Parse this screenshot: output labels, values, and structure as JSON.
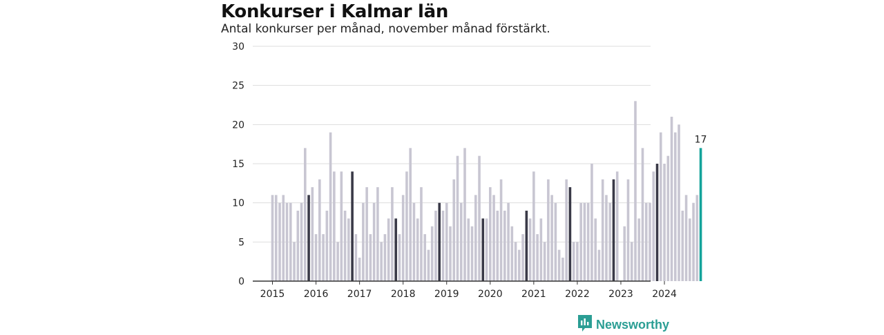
{
  "chart_data": {
    "type": "bar",
    "title": "Konkurser i Kalmar län",
    "subtitle": "Antal konkurser per månad, november månad förstärkt.",
    "xlabel": "",
    "ylabel": "",
    "ylim": [
      0,
      30
    ],
    "y_ticks": [
      "0",
      "5",
      "10",
      "15",
      "20",
      "25",
      "30"
    ],
    "x_tick_labels": [
      "2015",
      "2016",
      "2017",
      "2018",
      "2019",
      "2020",
      "2021",
      "2022",
      "2023",
      "2024"
    ],
    "start_month": "2015-01",
    "values": [
      11,
      11,
      10,
      11,
      10,
      10,
      5,
      9,
      10,
      17,
      11,
      12,
      6,
      13,
      6,
      9,
      19,
      14,
      5,
      14,
      9,
      8,
      14,
      6,
      3,
      10,
      12,
      6,
      10,
      12,
      5,
      6,
      8,
      12,
      8,
      6,
      11,
      14,
      17,
      10,
      8,
      12,
      6,
      4,
      7,
      9,
      10,
      9,
      10,
      7,
      13,
      16,
      10,
      17,
      8,
      7,
      11,
      16,
      8,
      8,
      12,
      11,
      9,
      13,
      9,
      10,
      7,
      5,
      4,
      6,
      9,
      8,
      14,
      6,
      8,
      5,
      13,
      11,
      10,
      4,
      3,
      13,
      12,
      5,
      5,
      10,
      10,
      10,
      15,
      8,
      4,
      13,
      11,
      10,
      13,
      14,
      0,
      7,
      13,
      5,
      23,
      8,
      17,
      10,
      10,
      14,
      15,
      19,
      15,
      16,
      21,
      19,
      20,
      9,
      11,
      8,
      10,
      11,
      17
    ],
    "highlight_month": "november",
    "last_value_label": "17",
    "colors": {
      "default": "#c8c6d2",
      "november": "#3a3a48",
      "latest": "#13a39a",
      "grid": "#dddddd",
      "axis": "#333333"
    }
  },
  "brand": {
    "name": "Newsworthy",
    "icon": "newsworthy-logo-icon",
    "color": "#2b9e94"
  }
}
